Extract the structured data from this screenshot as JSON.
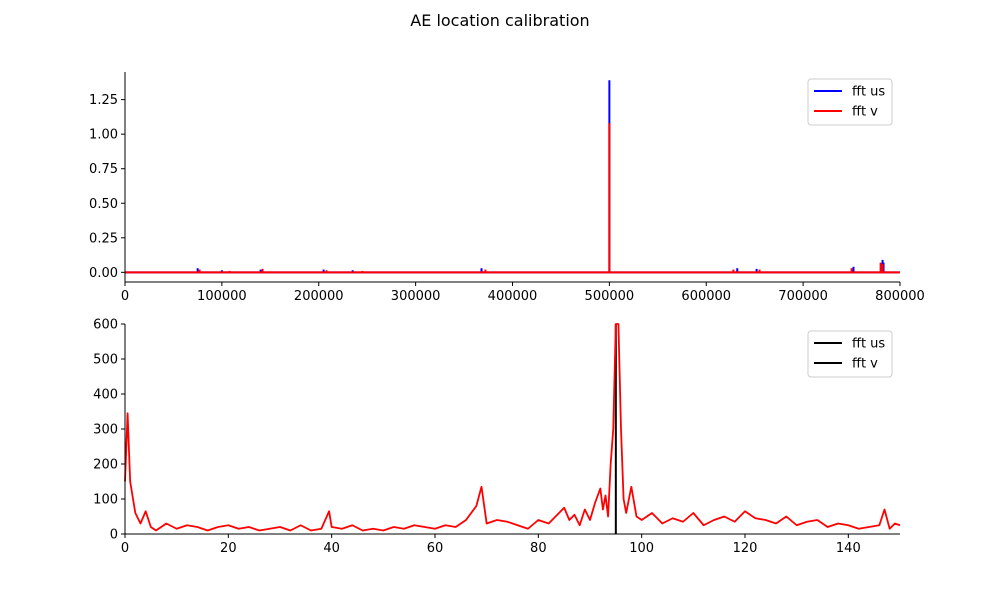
{
  "figure": {
    "title": "AE location calibration"
  },
  "chart_data": [
    {
      "type": "line",
      "xlim": [
        0,
        800000
      ],
      "ylim": [
        -0.07,
        1.45
      ],
      "x_ticks": [
        "0",
        "100000",
        "200000",
        "300000",
        "400000",
        "500000",
        "600000",
        "700000",
        "800000"
      ],
      "y_ticks": [
        "0.00",
        "0.25",
        "0.50",
        "0.75",
        "1.00",
        "1.25"
      ],
      "legend_placement": "top-right",
      "grid": false,
      "series": [
        {
          "name": "fft us",
          "color": "#0000ff",
          "x": [
            75000,
            100000,
            140000,
            205000,
            235000,
            368000,
            500000,
            632000,
            652000,
            752000,
            782000,
            783000
          ],
          "y": [
            0.03,
            0.015,
            0.02,
            0.02,
            0.015,
            0.03,
            1.39,
            0.03,
            0.025,
            0.04,
            0.09,
            0.07
          ],
          "baseline": 0
        },
        {
          "name": "fft v",
          "color": "#ff0000",
          "x": [
            77000,
            108000,
            142000,
            208000,
            245000,
            372000,
            500000,
            628000,
            655000,
            750000,
            780000,
            782000
          ],
          "y": [
            0.02,
            0.01,
            0.025,
            0.015,
            0.01,
            0.02,
            1.08,
            0.02,
            0.02,
            0.03,
            0.07,
            0.06
          ],
          "baseline": 0
        }
      ]
    },
    {
      "type": "line",
      "xlim": [
        0,
        150
      ],
      "ylim": [
        0,
        600
      ],
      "x_ticks": [
        "0",
        "20",
        "40",
        "60",
        "80",
        "100",
        "120",
        "140"
      ],
      "y_ticks": [
        "0",
        "100",
        "200",
        "300",
        "400",
        "500",
        "600"
      ],
      "legend_placement": "top-right",
      "grid": false,
      "legend": [
        {
          "name": "fft us",
          "color": "#000000"
        },
        {
          "name": "fft v",
          "color": "#000000"
        }
      ],
      "series": [
        {
          "name": "fft us",
          "color": "#000000",
          "x": [
            95,
            95
          ],
          "y": [
            0,
            600
          ]
        },
        {
          "name": "fft v",
          "color": "#ff0000",
          "x": [
            0,
            0.5,
            1,
            2,
            3,
            4,
            5,
            6,
            8,
            10,
            12,
            14,
            16,
            18,
            20,
            22,
            24,
            26,
            28,
            30,
            32,
            34,
            36,
            38,
            39.5,
            40,
            42,
            44,
            46,
            48,
            50,
            52,
            54,
            56,
            58,
            60,
            62,
            64,
            66,
            68,
            69,
            70,
            72,
            74,
            76,
            78,
            80,
            82,
            84,
            85,
            86,
            87,
            88,
            89,
            90,
            91,
            92,
            92.5,
            93,
            93.5,
            94,
            94.5,
            95,
            95.5,
            96,
            96.5,
            97,
            98,
            99,
            100,
            102,
            104,
            106,
            108,
            110,
            112,
            114,
            116,
            118,
            120,
            122,
            124,
            126,
            128,
            130,
            132,
            134,
            136,
            138,
            140,
            142,
            144,
            146,
            147,
            148,
            149,
            150
          ],
          "y": [
            150,
            345,
            150,
            60,
            30,
            65,
            20,
            10,
            30,
            15,
            25,
            20,
            10,
            20,
            25,
            15,
            20,
            10,
            15,
            20,
            10,
            25,
            10,
            15,
            65,
            20,
            15,
            25,
            10,
            15,
            10,
            20,
            15,
            25,
            20,
            15,
            25,
            20,
            40,
            80,
            135,
            30,
            40,
            35,
            25,
            15,
            40,
            30,
            60,
            75,
            40,
            55,
            25,
            70,
            40,
            90,
            130,
            70,
            110,
            50,
            200,
            300,
            600,
            600,
            300,
            100,
            60,
            135,
            50,
            40,
            60,
            30,
            45,
            35,
            60,
            25,
            40,
            50,
            35,
            65,
            45,
            40,
            30,
            50,
            25,
            35,
            40,
            20,
            30,
            25,
            15,
            20,
            25,
            70,
            15,
            30,
            25
          ]
        }
      ]
    }
  ]
}
